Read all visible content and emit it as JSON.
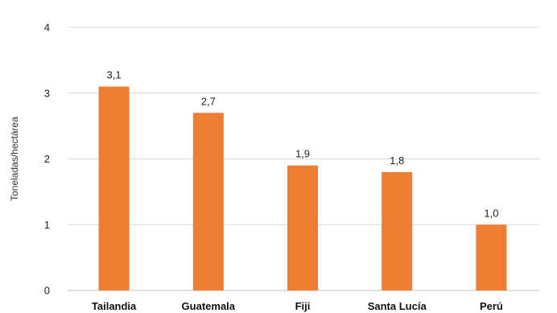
{
  "chart_data": {
    "type": "bar",
    "categories": [
      "Tailandia",
      "Guatemala",
      "Fiji",
      "Santa Lucía",
      "Perú"
    ],
    "values": [
      3.1,
      2.7,
      1.9,
      1.8,
      1.0
    ],
    "data_labels": [
      "3,1",
      "2,7",
      "1,9",
      "1,8",
      "1,0"
    ],
    "ylabel": "Toneladas/hectárea",
    "xlabel": "",
    "title": "",
    "ylim": [
      0,
      4
    ],
    "yticks": [
      0,
      1,
      2,
      3,
      4
    ],
    "ytick_labels": [
      "0",
      "1",
      "2",
      "3",
      "4"
    ],
    "grid": true,
    "legend": "none",
    "bar_color": "#ED7D31"
  }
}
